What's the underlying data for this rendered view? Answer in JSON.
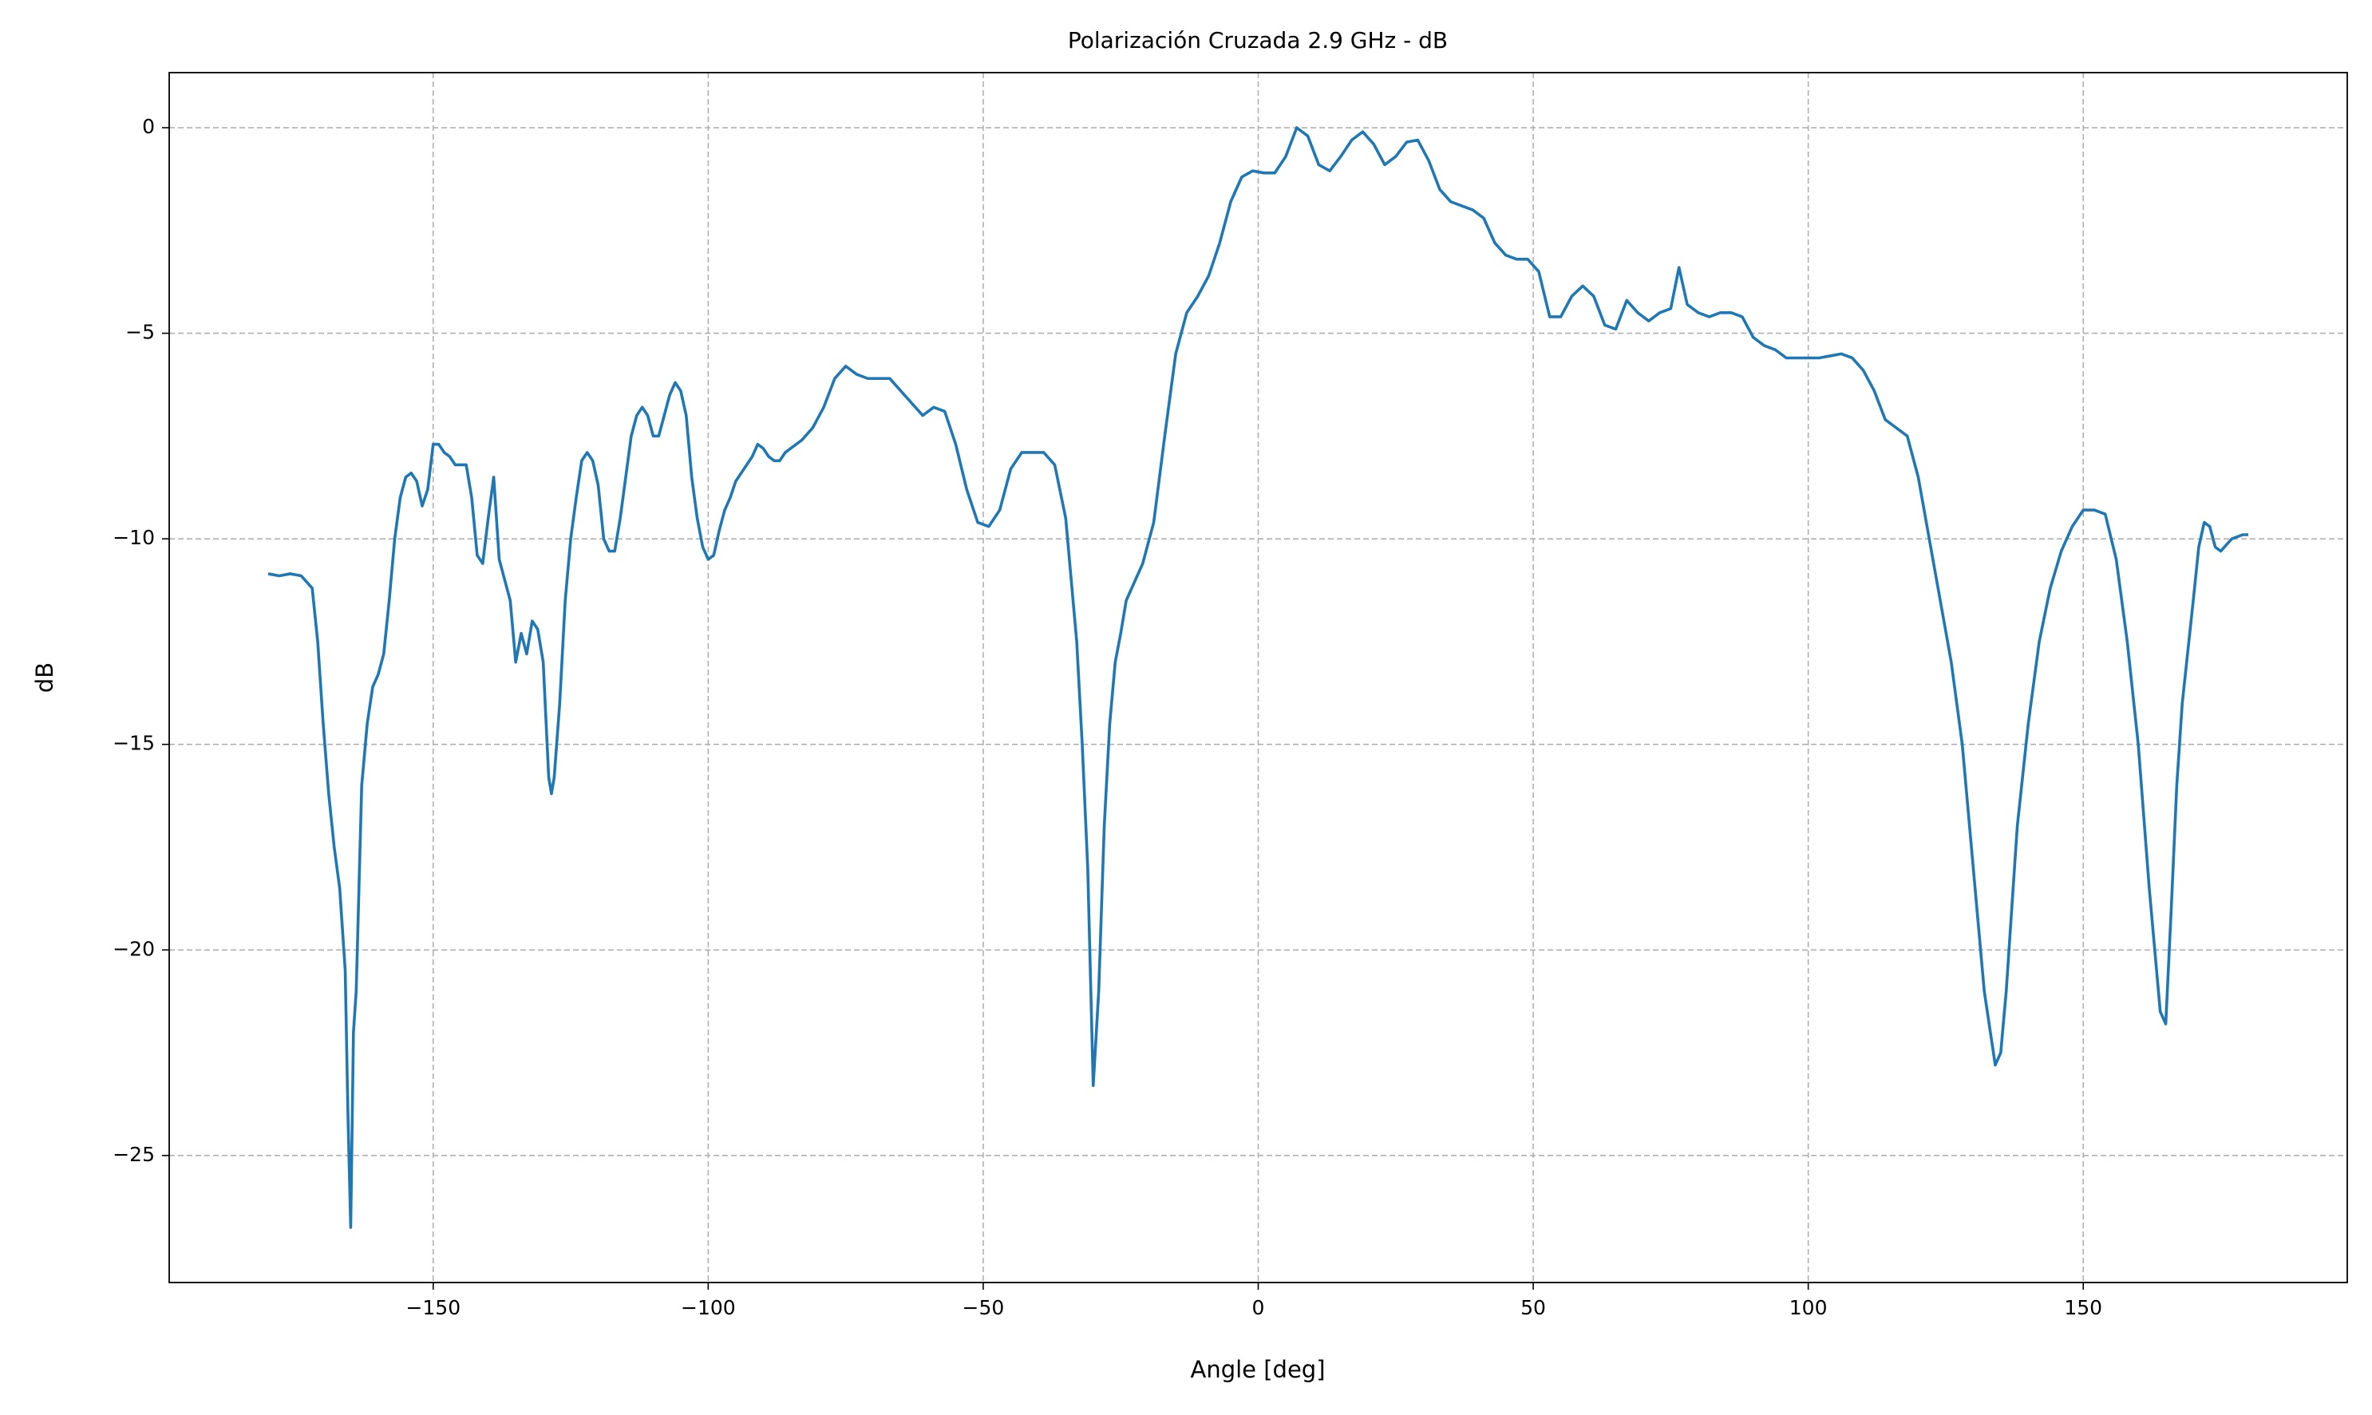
{
  "chart_data": {
    "type": "line",
    "title": "Polarización Cruzada 2.9 GHz - dB",
    "x_label": "Angle [deg]",
    "y_label": "dB",
    "x": [
      -180,
      -178,
      -176,
      -174,
      -172,
      -171,
      -170,
      -169,
      -168,
      -167,
      -166,
      -165.5,
      -165,
      -164.5,
      -164,
      -163,
      -162,
      -161,
      -160,
      -159,
      -158,
      -157,
      -156,
      -155,
      -154,
      -153,
      -152,
      -151,
      -150,
      -149,
      -148,
      -147,
      -146,
      -145,
      -144,
      -143,
      -142,
      -141,
      -140,
      -139,
      -138.5,
      -138,
      -137,
      -136,
      -135,
      -134,
      -133,
      -132,
      -131,
      -130,
      -129,
      -128.5,
      -128,
      -127,
      -126,
      -125,
      -124,
      -123,
      -122,
      -121,
      -120,
      -119,
      -118,
      -117,
      -116,
      -115,
      -114,
      -113,
      -112,
      -111,
      -110,
      -109,
      -108,
      -107,
      -106,
      -105,
      -104,
      -103,
      -102,
      -101,
      -100,
      -99,
      -98,
      -97,
      -96,
      -95,
      -94,
      -93,
      -92,
      -91,
      -90,
      -89,
      -88,
      -87,
      -86,
      -85,
      -83,
      -81,
      -79,
      -77,
      -75,
      -73,
      -71,
      -69,
      -67,
      -65,
      -63,
      -61,
      -59,
      -57,
      -55,
      -53,
      -51,
      -49,
      -47,
      -45,
      -43,
      -41,
      -39,
      -37,
      -35,
      -33,
      -32,
      -31,
      -30,
      -29,
      -28,
      -27,
      -26,
      -25,
      -24,
      -23,
      -21,
      -19,
      -17,
      -15,
      -13,
      -11,
      -9,
      -7,
      -5,
      -3,
      -1,
      1,
      3,
      5,
      7,
      9,
      11,
      13,
      15,
      17,
      19,
      21,
      23,
      25,
      27,
      29,
      31,
      33,
      35,
      37,
      39,
      41,
      43,
      45,
      47,
      49,
      51,
      53,
      55,
      57,
      59,
      61,
      63,
      65,
      67,
      69,
      71,
      73,
      75,
      76.5,
      78,
      80,
      82,
      84,
      86,
      88,
      90,
      92,
      94,
      96,
      98,
      100,
      102,
      104,
      106,
      108,
      110,
      112,
      114,
      116,
      118,
      120,
      122,
      124,
      126,
      128,
      130,
      132,
      134,
      135,
      136,
      137,
      138,
      140,
      142,
      144,
      146,
      148,
      150,
      152,
      154,
      156,
      158,
      160,
      162,
      164,
      165,
      166,
      167,
      168,
      170,
      171,
      172,
      173,
      174,
      175,
      177,
      179,
      180
    ],
    "values": [
      -10.85,
      -10.9,
      -10.85,
      -10.9,
      -11.2,
      -12.5,
      -14.5,
      -16.2,
      -17.5,
      -18.5,
      -20.5,
      -24,
      -26.75,
      -22,
      -21,
      -16,
      -14.5,
      -13.6,
      -13.3,
      -12.8,
      -11.5,
      -10,
      -9,
      -8.5,
      -8.4,
      -8.6,
      -9.2,
      -8.8,
      -7.7,
      -7.7,
      -7.9,
      -8.0,
      -8.2,
      -8.2,
      -8.2,
      -9,
      -10.4,
      -10.6,
      -9.5,
      -8.5,
      -9.5,
      -10.5,
      -11,
      -11.5,
      -13,
      -12.3,
      -12.8,
      -12,
      -12.2,
      -13,
      -15.8,
      -16.2,
      -15.8,
      -14,
      -11.5,
      -10,
      -9,
      -8.1,
      -7.9,
      -8.1,
      -8.7,
      -10,
      -10.3,
      -10.3,
      -9.5,
      -8.5,
      -7.5,
      -7,
      -6.8,
      -7,
      -7.5,
      -7.5,
      -7,
      -6.5,
      -6.2,
      -6.4,
      -7,
      -8.5,
      -9.5,
      -10.2,
      -10.5,
      -10.4,
      -9.8,
      -9.3,
      -9,
      -8.6,
      -8.4,
      -8.2,
      -8,
      -7.7,
      -7.8,
      -8.0,
      -8.1,
      -8.1,
      -7.9,
      -7.8,
      -7.6,
      -7.3,
      -6.8,
      -6.1,
      -5.8,
      -6.0,
      -6.1,
      -6.1,
      -6.1,
      -6.4,
      -6.7,
      -7.0,
      -6.8,
      -6.9,
      -7.7,
      -8.8,
      -9.6,
      -9.7,
      -9.3,
      -8.3,
      -7.9,
      -7.9,
      -7.9,
      -8.2,
      -9.5,
      -12.5,
      -15,
      -18,
      -23.3,
      -21,
      -17,
      -14.5,
      -13,
      -12.3,
      -11.5,
      -11.2,
      -10.6,
      -9.6,
      -7.5,
      -5.5,
      -4.5,
      -4.1,
      -3.6,
      -2.8,
      -1.8,
      -1.2,
      -1.05,
      -1.1,
      -1.1,
      -0.7,
      0,
      -0.2,
      -0.9,
      -1.05,
      -0.7,
      -0.3,
      -0.1,
      -0.4,
      -0.9,
      -0.7,
      -0.35,
      -0.3,
      -0.8,
      -1.5,
      -1.8,
      -1.9,
      -2.0,
      -2.2,
      -2.8,
      -3.1,
      -3.2,
      -3.2,
      -3.5,
      -4.6,
      -4.6,
      -4.1,
      -3.85,
      -4.1,
      -4.8,
      -4.9,
      -4.2,
      -4.5,
      -4.7,
      -4.5,
      -4.4,
      -3.4,
      -4.3,
      -4.5,
      -4.6,
      -4.5,
      -4.5,
      -4.6,
      -5.1,
      -5.3,
      -5.4,
      -5.6,
      -5.6,
      -5.6,
      -5.6,
      -5.55,
      -5.5,
      -5.6,
      -5.9,
      -6.4,
      -7.1,
      -7.3,
      -7.5,
      -8.5,
      -10,
      -11.5,
      -13,
      -15,
      -18,
      -21,
      -22.8,
      -22.5,
      -21,
      -19,
      -17,
      -14.5,
      -12.5,
      -11.2,
      -10.3,
      -9.7,
      -9.3,
      -9.3,
      -9.4,
      -10.5,
      -12.5,
      -15,
      -18.5,
      -21.5,
      -21.8,
      -19,
      -16,
      -14,
      -11.5,
      -10.2,
      -9.6,
      -9.7,
      -10.2,
      -10.3,
      -10.0,
      -9.9,
      -9.9
    ],
    "color": "#1f77b4",
    "xlim": [
      -198,
      198
    ],
    "ylim": [
      -28.09,
      1.34
    ],
    "xticks": [
      {
        "value": -150,
        "label": "−150"
      },
      {
        "value": -100,
        "label": "−100"
      },
      {
        "value": -50,
        "label": "−50"
      },
      0,
      50,
      100,
      150
    ],
    "yticks": [
      {
        "value": -25,
        "label": "−25"
      },
      {
        "value": -20,
        "label": "−20"
      },
      {
        "value": -15,
        "label": "−15"
      },
      {
        "value": -10,
        "label": "−10"
      },
      {
        "value": -5,
        "label": "−5"
      },
      0
    ],
    "grid": true
  }
}
